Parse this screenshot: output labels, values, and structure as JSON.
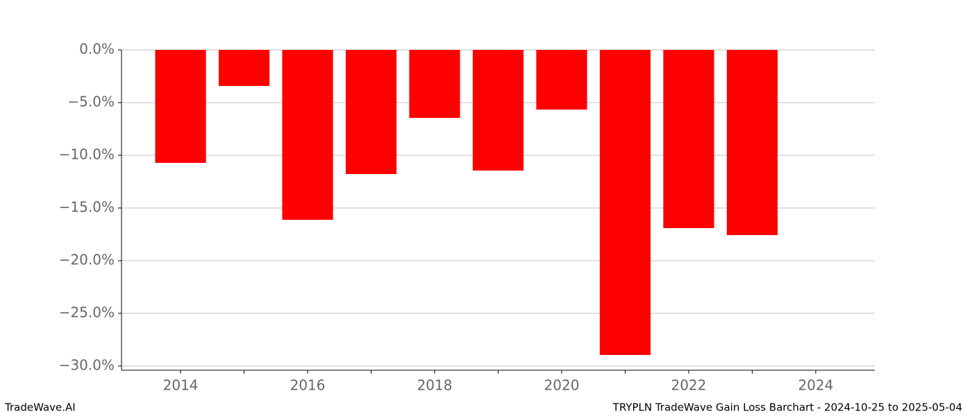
{
  "chart_data": {
    "type": "bar",
    "title": "TRYPLN TradeWave Gain Loss Barchart - 2024-10-25 to 2025-05-04",
    "brand": "TradeWave.AI",
    "x": [
      2014,
      2015,
      2016,
      2017,
      2018,
      2019,
      2020,
      2021,
      2022,
      2023
    ],
    "values": [
      -10.72,
      -3.42,
      -16.12,
      -11.78,
      -6.45,
      -11.45,
      -5.66,
      -28.95,
      -16.91,
      -17.57
    ],
    "color": "#ff0000",
    "bar_width": 0.8,
    "xlim": [
      2013.07,
      2024.93
    ],
    "xticks": [
      2014,
      2016,
      2018,
      2020,
      2022,
      2024
    ],
    "xminorticks": [
      2015,
      2017,
      2019,
      2021,
      2023
    ],
    "ylim": [
      -30.4,
      0
    ],
    "yticks": [
      {
        "value": 0,
        "label": "0.0%"
      },
      {
        "value": -5,
        "label": "−5.0%"
      },
      {
        "value": -10,
        "label": "−10.0%"
      },
      {
        "value": -15,
        "label": "−15.0%"
      },
      {
        "value": -20,
        "label": "−20.0%"
      },
      {
        "value": -25,
        "label": "−25.0%"
      },
      {
        "value": -30,
        "label": "−30.0%"
      }
    ],
    "grid": true
  }
}
